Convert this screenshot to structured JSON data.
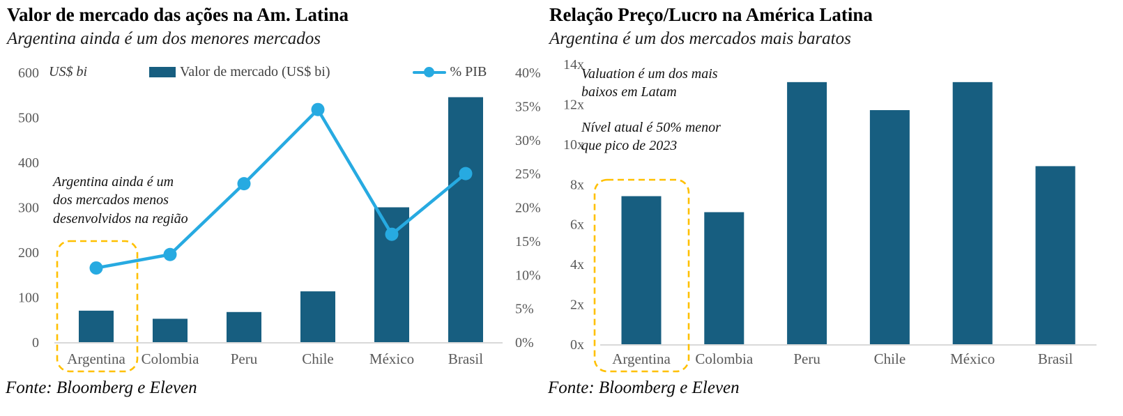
{
  "colors": {
    "bar": "#175E80",
    "line": "#27AAE1",
    "highlight_box": "#FFC000",
    "tick_label": "#595959",
    "axis_line": "#D9D9D9",
    "legend_text": "#404040",
    "title_text": "#000000"
  },
  "chart_data": [
    {
      "type": "bar",
      "combo": "bar+line",
      "title": "Valor de mercado das ações na Am. Latina",
      "subtitle": "Argentina ainda é um dos menores mercados",
      "categories": [
        "Argentina",
        "Colombia",
        "Peru",
        "Chile",
        "México",
        "Brasil"
      ],
      "series": [
        {
          "name": "Valor de mercado (US$ bi)",
          "type": "bar",
          "axis": "left",
          "values": [
            70,
            52,
            67,
            113,
            300,
            545
          ]
        },
        {
          "name": "% PIB",
          "type": "line",
          "axis": "right",
          "values": [
            11,
            13,
            23.5,
            34.5,
            16,
            25
          ]
        }
      ],
      "left_axis": {
        "title": "US$ bi",
        "min": 0,
        "max": 600,
        "step": 100,
        "tick_values": [
          0,
          100,
          200,
          300,
          400,
          500,
          600
        ],
        "tick_labels": [
          "0",
          "100",
          "200",
          "300",
          "400",
          "500",
          "600"
        ]
      },
      "right_axis": {
        "min": 0,
        "max": 40,
        "step": 5,
        "tick_values": [
          0,
          5,
          10,
          15,
          20,
          25,
          30,
          35,
          40
        ],
        "tick_labels": [
          "0%",
          "5%",
          "10%",
          "15%",
          "20%",
          "25%",
          "30%",
          "35%",
          "40%"
        ]
      },
      "legend_position": "top",
      "grid": "off",
      "annotation": "Argentina ainda é um\ndos mercados menos\ndesenvolvidos na região",
      "highlight": {
        "category": "Argentina"
      },
      "source": "Fonte: Bloomberg e Eleven"
    },
    {
      "type": "bar",
      "title": "Relação Preço/Lucro na América Latina",
      "subtitle": "Argentina é um dos mercados mais baratos",
      "categories": [
        "Argentina",
        "Colombia",
        "Peru",
        "Chile",
        "México",
        "Brasil"
      ],
      "values": [
        7.4,
        6.6,
        13.1,
        11.7,
        13.1,
        8.9
      ],
      "left_axis": {
        "min": 0,
        "max": 14,
        "step": 2,
        "tick_values": [
          0,
          2,
          4,
          6,
          8,
          10,
          12,
          14
        ],
        "tick_labels": [
          "0x",
          "2x",
          "4x",
          "6x",
          "8x",
          "10x",
          "12x",
          "14x"
        ]
      },
      "grid": "off",
      "annotations": [
        "Valuation é um dos mais\nbaixos em Latam",
        "Nível atual é 50% menor\nque pico de 2023"
      ],
      "highlight": {
        "category": "Argentina"
      },
      "source": "Fonte: Bloomberg e Eleven"
    }
  ]
}
